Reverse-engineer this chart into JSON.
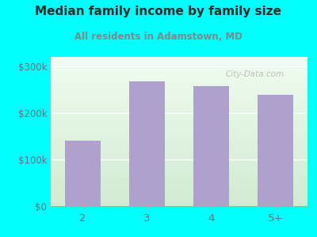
{
  "categories": [
    "2",
    "3",
    "4",
    "5+"
  ],
  "values": [
    140000,
    268000,
    258000,
    238000
  ],
  "bar_color": "#b0a0cc",
  "title": "Median family income by family size",
  "subtitle": "All residents in Adamstown, MD",
  "title_color": "#2a2a2a",
  "subtitle_color": "#7a8a8a",
  "ylabel_ticks": [
    0,
    100000,
    200000,
    300000
  ],
  "ylabel_labels": [
    "$0",
    "$100k",
    "$200k",
    "$300k"
  ],
  "ylim": [
    0,
    320000
  ],
  "background_outer": "#00ffff",
  "background_inner_top": "#f0faf0",
  "background_inner_bottom": "#d8edd8",
  "watermark": "City-Data.com",
  "tick_color": "#5a7a7a",
  "grid_color": "#ffffff",
  "bar_width": 0.55
}
